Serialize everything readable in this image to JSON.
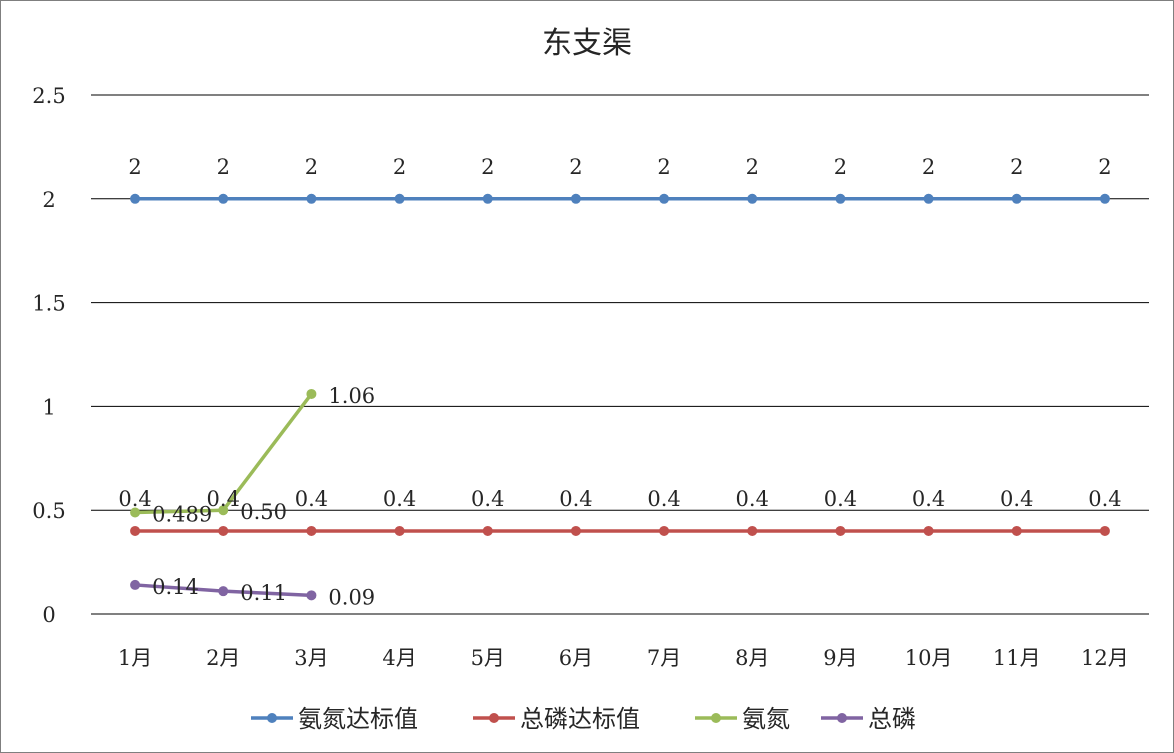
{
  "chart_data": {
    "type": "line",
    "title": "东支渠",
    "categories": [
      "1月",
      "2月",
      "3月",
      "4月",
      "5月",
      "6月",
      "7月",
      "8月",
      "9月",
      "10月",
      "11月",
      "12月"
    ],
    "ylim": [
      0,
      2.5
    ],
    "y_ticks": [
      "0",
      "0.5",
      "1",
      "1.5",
      "2",
      "2.5"
    ],
    "grid": true,
    "legend_position": "bottom",
    "series": [
      {
        "name": "氨氮达标值",
        "color": "#4f81bd",
        "values": [
          2,
          2,
          2,
          2,
          2,
          2,
          2,
          2,
          2,
          2,
          2,
          2
        ],
        "labels": [
          "2",
          "2",
          "2",
          "2",
          "2",
          "2",
          "2",
          "2",
          "2",
          "2",
          "2",
          "2"
        ]
      },
      {
        "name": "总磷达标值",
        "color": "#c0504d",
        "values": [
          0.4,
          0.4,
          0.4,
          0.4,
          0.4,
          0.4,
          0.4,
          0.4,
          0.4,
          0.4,
          0.4,
          0.4
        ],
        "labels": [
          "0.4",
          "0.4",
          "0.4",
          "0.4",
          "0.4",
          "0.4",
          "0.4",
          "0.4",
          "0.4",
          "0.4",
          "0.4",
          "0.4"
        ]
      },
      {
        "name": "氨氮",
        "color": "#9bbb59",
        "values": [
          0.489,
          0.5,
          1.06,
          null,
          null,
          null,
          null,
          null,
          null,
          null,
          null,
          null
        ],
        "labels": [
          "0.489",
          "0.50",
          "1.06",
          null,
          null,
          null,
          null,
          null,
          null,
          null,
          null,
          null
        ]
      },
      {
        "name": "总磷",
        "color": "#8064a2",
        "values": [
          0.14,
          0.11,
          0.09,
          null,
          null,
          null,
          null,
          null,
          null,
          null,
          null,
          null
        ],
        "labels": [
          "0.14",
          "0.11",
          "0.09",
          null,
          null,
          null,
          null,
          null,
          null,
          null,
          null,
          null
        ]
      }
    ]
  }
}
